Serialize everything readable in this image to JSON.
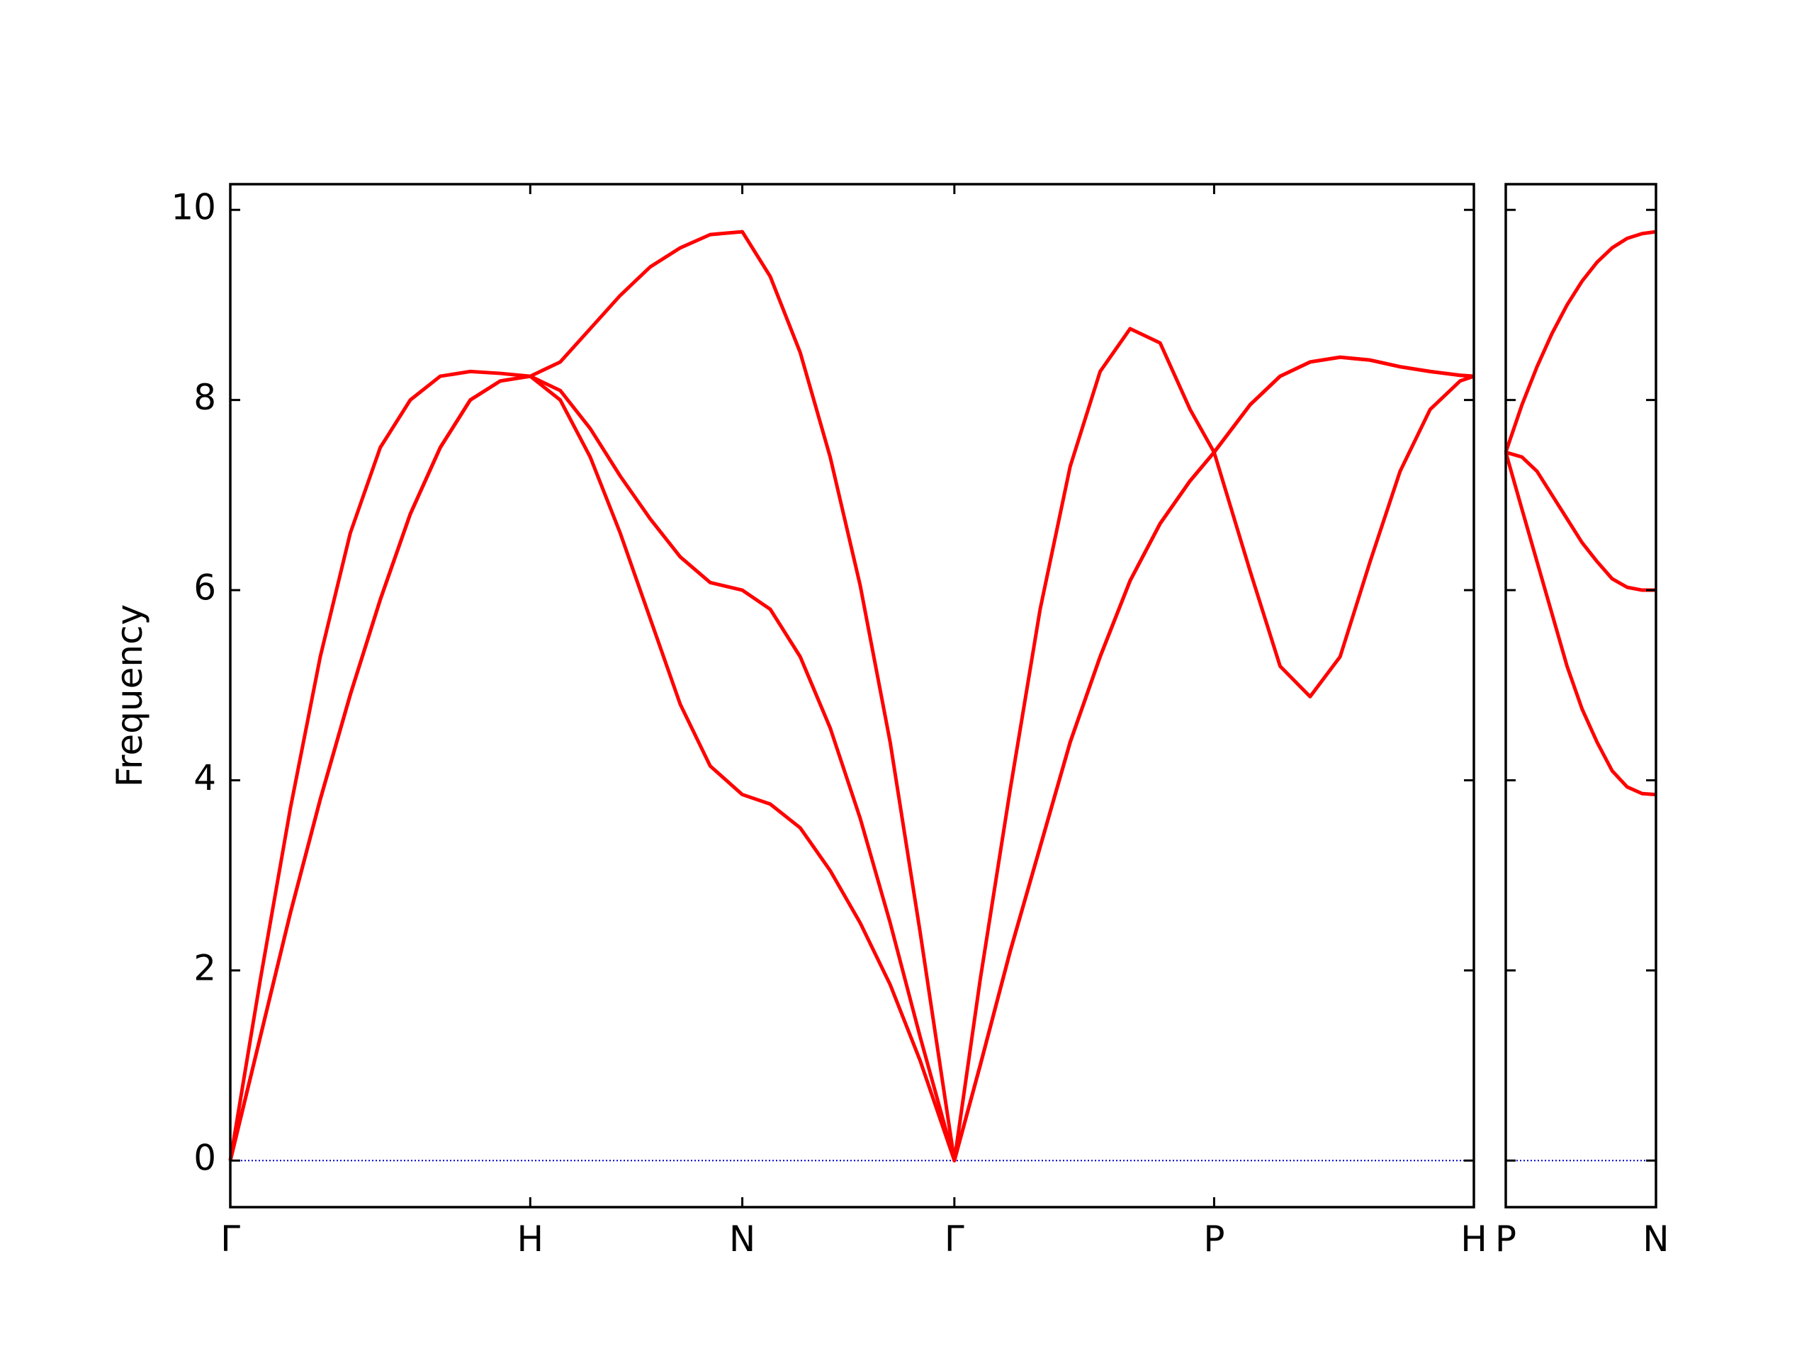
{
  "chart_data": [
    {
      "type": "line",
      "ylabel": "Frequency",
      "x": [
        0,
        0.1,
        0.2,
        0.3,
        0.4,
        0.5,
        0.6,
        0.7,
        0.8,
        0.9,
        1.0,
        1.1,
        1.2,
        1.3,
        1.4,
        1.5,
        1.6,
        1.707,
        1.8,
        1.9,
        2.0,
        2.1,
        2.2,
        2.3,
        2.414,
        2.5,
        2.6,
        2.7,
        2.8,
        2.9,
        3.0,
        3.1,
        3.2,
        3.28,
        3.4,
        3.5,
        3.6,
        3.7,
        3.8,
        3.9,
        4.0,
        4.1,
        4.146
      ],
      "series": [
        {
          "color": "#ff0000",
          "values": [
            0,
            1.9,
            3.7,
            5.3,
            6.6,
            7.5,
            8.0,
            8.25,
            8.3,
            8.28,
            8.25,
            8.4,
            8.75,
            9.1,
            9.4,
            9.6,
            9.74,
            9.77,
            9.3,
            8.5,
            7.4,
            6.05,
            4.4,
            2.4,
            0,
            1.9,
            3.9,
            5.8,
            7.3,
            8.3,
            8.75,
            8.6,
            7.9,
            7.45,
            6.2,
            5.2,
            4.88,
            5.3,
            6.3,
            7.25,
            7.9,
            8.2,
            8.25
          ]
        },
        {
          "color": "#ff0000",
          "values": [
            0,
            1.3,
            2.6,
            3.8,
            4.9,
            5.9,
            6.8,
            7.5,
            8.0,
            8.2,
            8.25,
            8.1,
            7.7,
            7.2,
            6.75,
            6.35,
            6.08,
            6.0,
            5.8,
            5.3,
            4.55,
            3.6,
            2.5,
            1.3,
            0,
            1.0,
            2.2,
            3.3,
            4.4,
            5.3,
            6.1,
            6.7,
            7.15,
            7.45,
            7.95,
            8.25,
            8.4,
            8.45,
            8.42,
            8.35,
            8.3,
            8.26,
            8.25
          ]
        },
        {
          "color": "#ff0000",
          "values": [
            0,
            1.3,
            2.6,
            3.8,
            4.9,
            5.9,
            6.8,
            7.5,
            8.0,
            8.2,
            8.25,
            8.0,
            7.4,
            6.6,
            5.7,
            4.8,
            4.15,
            3.85,
            3.75,
            3.5,
            3.05,
            2.5,
            1.85,
            1.05,
            0,
            1.0,
            2.2,
            3.3,
            4.4,
            5.3,
            6.1,
            6.7,
            7.15,
            7.45,
            7.95,
            8.25,
            8.4,
            8.45,
            8.42,
            8.35,
            8.3,
            8.26,
            8.25
          ]
        }
      ],
      "hline": {
        "value": 0,
        "color": "#0000cc"
      },
      "xlim": [
        0,
        4.146
      ],
      "xticks": [
        {
          "value": 0,
          "label": "Γ"
        },
        {
          "value": 1,
          "label": "H"
        },
        {
          "value": 1.707,
          "label": "N"
        },
        {
          "value": 2.414,
          "label": "Γ"
        },
        {
          "value": 3.28,
          "label": "P"
        },
        {
          "value": 4.146,
          "label": "H"
        }
      ],
      "ylim": [
        -0.49,
        10.27
      ],
      "yticks": [
        0,
        2,
        4,
        6,
        8,
        10
      ],
      "ytick_labels": true
    },
    {
      "type": "line",
      "x": [
        4.146,
        4.2,
        4.25,
        4.3,
        4.35,
        4.4,
        4.45,
        4.5,
        4.55,
        4.6,
        4.646
      ],
      "series": [
        {
          "color": "#ff0000",
          "values": [
            7.45,
            7.95,
            8.35,
            8.7,
            9.0,
            9.25,
            9.45,
            9.6,
            9.7,
            9.75,
            9.77
          ]
        },
        {
          "color": "#ff0000",
          "values": [
            7.45,
            7.4,
            7.25,
            7.0,
            6.75,
            6.5,
            6.3,
            6.12,
            6.03,
            6.0,
            6.0
          ]
        },
        {
          "color": "#ff0000",
          "values": [
            7.45,
            6.85,
            6.3,
            5.75,
            5.2,
            4.75,
            4.4,
            4.1,
            3.93,
            3.86,
            3.85
          ]
        }
      ],
      "hline": {
        "value": 0,
        "color": "#0000cc"
      },
      "xlim": [
        4.146,
        4.646
      ],
      "xticks": [
        {
          "value": 4.146,
          "label": "P"
        },
        {
          "value": 4.646,
          "label": "N"
        }
      ],
      "ylim": [
        -0.49,
        10.27
      ],
      "yticks": [
        0,
        2,
        4,
        6,
        8,
        10
      ],
      "ytick_labels": false
    }
  ]
}
